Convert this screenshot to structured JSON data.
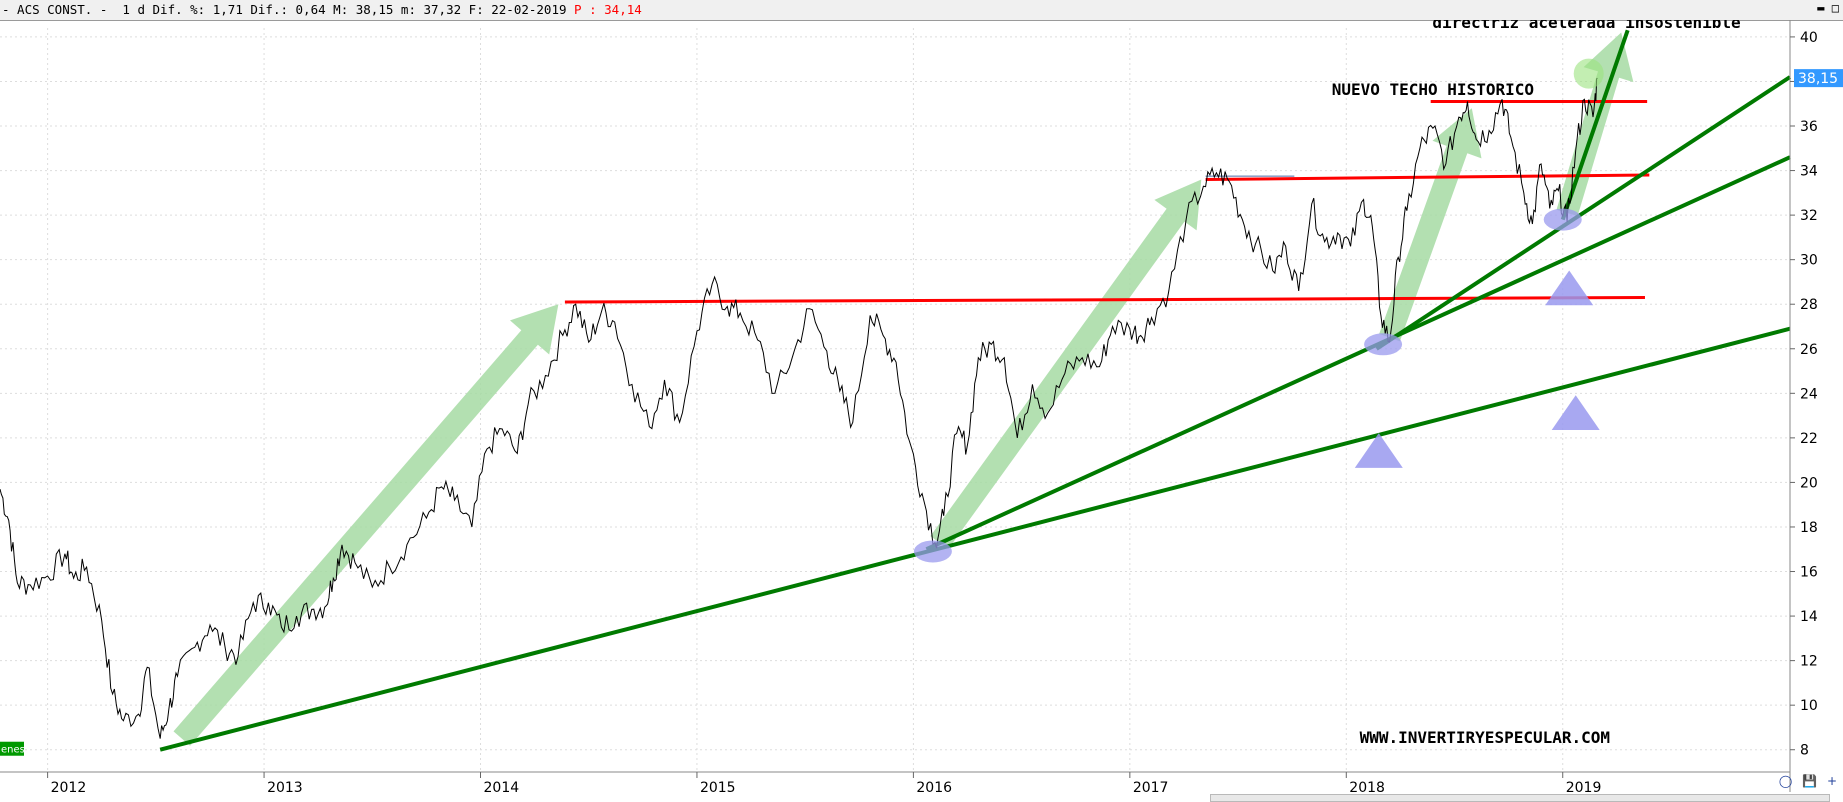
{
  "header": {
    "title": "- ACS CONST. -",
    "period": "1 d",
    "dif_pct": "Dif. %: 1,71",
    "dif": "Dif.: 0,64",
    "max": "M: 38,15",
    "min": "m: 37,32",
    "date": "F: 22-02-2019",
    "p_value": "P : 34,14"
  },
  "window_buttons": {
    "minimize": "▬",
    "restore": "□"
  },
  "tools": {
    "marker": "◯",
    "save": "💾",
    "plus": "+"
  },
  "chart_data": {
    "type": "line",
    "title": "",
    "xlabel": "",
    "ylabel": "",
    "x_range": [
      2011.78,
      2020.05
    ],
    "ylim": [
      7,
      40.4
    ],
    "grid": true,
    "y_ticks": [
      8,
      10,
      12,
      14,
      16,
      18,
      20,
      22,
      24,
      26,
      28,
      30,
      32,
      34,
      36,
      38,
      40
    ],
    "x_ticks": [
      {
        "year": 2012,
        "label": "2012"
      },
      {
        "year": 2013,
        "label": "2013"
      },
      {
        "year": 2014,
        "label": "2014"
      },
      {
        "year": 2015,
        "label": "2015"
      },
      {
        "year": 2016,
        "label": "2016"
      },
      {
        "year": 2017,
        "label": "2017"
      },
      {
        "year": 2018,
        "label": "2018"
      },
      {
        "year": 2019,
        "label": "2019"
      }
    ],
    "last_value": "38,15",
    "price_keypoints": [
      [
        2011.78,
        19.7
      ],
      [
        2011.82,
        18.3
      ],
      [
        2011.86,
        15.5
      ],
      [
        2011.92,
        15.4
      ],
      [
        2012.0,
        15.8
      ],
      [
        2012.08,
        16.8
      ],
      [
        2012.12,
        15.7
      ],
      [
        2012.18,
        16.2
      ],
      [
        2012.25,
        13.8
      ],
      [
        2012.3,
        10.5
      ],
      [
        2012.35,
        9.3
      ],
      [
        2012.42,
        9.6
      ],
      [
        2012.46,
        11.7
      ],
      [
        2012.52,
        8.5
      ],
      [
        2012.56,
        9.8
      ],
      [
        2012.6,
        11.3
      ],
      [
        2012.68,
        12.6
      ],
      [
        2012.75,
        13.6
      ],
      [
        2012.82,
        12.6
      ],
      [
        2012.88,
        12.2
      ],
      [
        2012.95,
        14.6
      ],
      [
        2013.02,
        14.6
      ],
      [
        2013.08,
        13.5
      ],
      [
        2013.15,
        14.0
      ],
      [
        2013.22,
        14.3
      ],
      [
        2013.28,
        14.4
      ],
      [
        2013.32,
        15.7
      ],
      [
        2013.36,
        17.2
      ],
      [
        2013.42,
        16.4
      ],
      [
        2013.5,
        15.3
      ],
      [
        2013.58,
        16.2
      ],
      [
        2013.66,
        17.2
      ],
      [
        2013.75,
        18.4
      ],
      [
        2013.82,
        19.8
      ],
      [
        2013.88,
        19.2
      ],
      [
        2013.96,
        18.0
      ],
      [
        2014.03,
        21.5
      ],
      [
        2014.1,
        22.4
      ],
      [
        2014.17,
        21.3
      ],
      [
        2014.22,
        23.5
      ],
      [
        2014.3,
        24.8
      ],
      [
        2014.38,
        26.6
      ],
      [
        2014.44,
        28.0
      ],
      [
        2014.5,
        26.3
      ],
      [
        2014.56,
        27.7
      ],
      [
        2014.62,
        27.2
      ],
      [
        2014.7,
        24.4
      ],
      [
        2014.78,
        22.5
      ],
      [
        2014.85,
        24.6
      ],
      [
        2014.92,
        22.7
      ],
      [
        2015.0,
        26.8
      ],
      [
        2015.07,
        28.9
      ],
      [
        2015.14,
        27.9
      ],
      [
        2015.2,
        27.6
      ],
      [
        2015.28,
        26.4
      ],
      [
        2015.36,
        24.0
      ],
      [
        2015.44,
        25.6
      ],
      [
        2015.52,
        27.8
      ],
      [
        2015.6,
        25.9
      ],
      [
        2015.66,
        24.1
      ],
      [
        2015.72,
        22.7
      ],
      [
        2015.8,
        27.5
      ],
      [
        2015.86,
        26.6
      ],
      [
        2015.92,
        25.4
      ],
      [
        2015.98,
        21.9
      ],
      [
        2016.04,
        19.5
      ],
      [
        2016.1,
        17.3
      ],
      [
        2016.14,
        18.5
      ],
      [
        2016.2,
        22.2
      ],
      [
        2016.25,
        21.7
      ],
      [
        2016.3,
        25.6
      ],
      [
        2016.36,
        26.2
      ],
      [
        2016.42,
        25.6
      ],
      [
        2016.48,
        22.0
      ],
      [
        2016.55,
        24.4
      ],
      [
        2016.62,
        23.1
      ],
      [
        2016.7,
        24.9
      ],
      [
        2016.78,
        25.6
      ],
      [
        2016.86,
        25.2
      ],
      [
        2016.92,
        27.0
      ],
      [
        2017.0,
        26.9
      ],
      [
        2017.05,
        26.6
      ],
      [
        2017.1,
        27.4
      ],
      [
        2017.18,
        28.6
      ],
      [
        2017.26,
        31.8
      ],
      [
        2017.34,
        33.3
      ],
      [
        2017.4,
        33.9
      ],
      [
        2017.46,
        33.5
      ],
      [
        2017.52,
        31.8
      ],
      [
        2017.58,
        30.7
      ],
      [
        2017.66,
        29.5
      ],
      [
        2017.72,
        30.6
      ],
      [
        2017.78,
        28.6
      ],
      [
        2017.84,
        32.5
      ],
      [
        2017.9,
        30.8
      ],
      [
        2017.96,
        31.2
      ],
      [
        2018.02,
        30.6
      ],
      [
        2018.08,
        32.7
      ],
      [
        2018.12,
        31.5
      ],
      [
        2018.16,
        27.5
      ],
      [
        2018.2,
        26.3
      ],
      [
        2018.24,
        30.1
      ],
      [
        2018.28,
        32.2
      ],
      [
        2018.34,
        35.0
      ],
      [
        2018.4,
        35.9
      ],
      [
        2018.46,
        34.3
      ],
      [
        2018.52,
        36.4
      ],
      [
        2018.56,
        37.1
      ],
      [
        2018.6,
        35.4
      ],
      [
        2018.66,
        35.8
      ],
      [
        2018.72,
        37.2
      ],
      [
        2018.76,
        35.5
      ],
      [
        2018.82,
        33.0
      ],
      [
        2018.86,
        31.6
      ],
      [
        2018.9,
        34.3
      ],
      [
        2018.94,
        32.3
      ],
      [
        2018.98,
        33.1
      ],
      [
        2019.02,
        31.7
      ],
      [
        2019.06,
        34.9
      ],
      [
        2019.1,
        37.2
      ],
      [
        2019.14,
        36.4
      ],
      [
        2019.16,
        38.15
      ]
    ],
    "support_lines": [
      {
        "from": [
          2012.52,
          8.0
        ],
        "to": [
          2020.05,
          26.9
        ]
      },
      {
        "from": [
          2016.06,
          17.0
        ],
        "to": [
          2020.05,
          34.6
        ]
      },
      {
        "from": [
          2018.14,
          26.0
        ],
        "to": [
          2020.05,
          38.2
        ]
      },
      {
        "from": [
          2019.0,
          31.8
        ],
        "to": [
          2019.3,
          40.3
        ]
      }
    ],
    "resistance_lines": [
      {
        "from": [
          2014.39,
          28.1
        ],
        "to": [
          2019.38,
          28.3
        ]
      },
      {
        "from": [
          2017.35,
          33.6
        ],
        "to": [
          2019.4,
          33.8
        ]
      },
      {
        "from": [
          2018.39,
          37.1
        ],
        "to": [
          2019.39,
          37.1
        ]
      }
    ],
    "trend_arrows": [
      {
        "from": [
          2012.62,
          8.5
        ],
        "to": [
          2014.36,
          28.0
        ]
      },
      {
        "from": [
          2016.12,
          17.3
        ],
        "to": [
          2017.33,
          33.6
        ]
      },
      {
        "from": [
          2018.2,
          26.5
        ],
        "to": [
          2018.58,
          36.8
        ]
      },
      {
        "from": [
          2019.02,
          32.1
        ],
        "to": [
          2019.27,
          40.2
        ]
      }
    ],
    "touch_points": [
      {
        "at": [
          2016.09,
          16.9
        ]
      },
      {
        "at": [
          2018.17,
          26.2
        ]
      },
      {
        "at": [
          2019.0,
          31.8
        ]
      }
    ],
    "up_triangles": [
      {
        "at": [
          2018.15,
          21.3
        ]
      },
      {
        "at": [
          2019.03,
          28.6
        ]
      },
      {
        "at": [
          2019.06,
          23.0
        ]
      }
    ],
    "annotations": [
      {
        "name": "annotation-accelerated-trendline",
        "text": "directriz acelerada insostenible",
        "at": [
          2019.11,
          40.4
        ]
      },
      {
        "name": "annotation-new-historic-high",
        "text": "NUEVO TECHO HISTORICO",
        "at": [
          2018.4,
          37.4
        ]
      },
      {
        "name": "annotation-website",
        "text": "WWW.INVERTIRYESPECULAR.COM",
        "at": [
          2018.64,
          8.3
        ]
      }
    ],
    "legend_text": "enes",
    "colors": {
      "price": "#000000",
      "resistance": "#ff0000",
      "support": "#007a00",
      "arrow": "#a6dba3",
      "marker": "#9999ee",
      "last_value_bg": "#3399ff",
      "legend_bg": "#009900"
    }
  }
}
